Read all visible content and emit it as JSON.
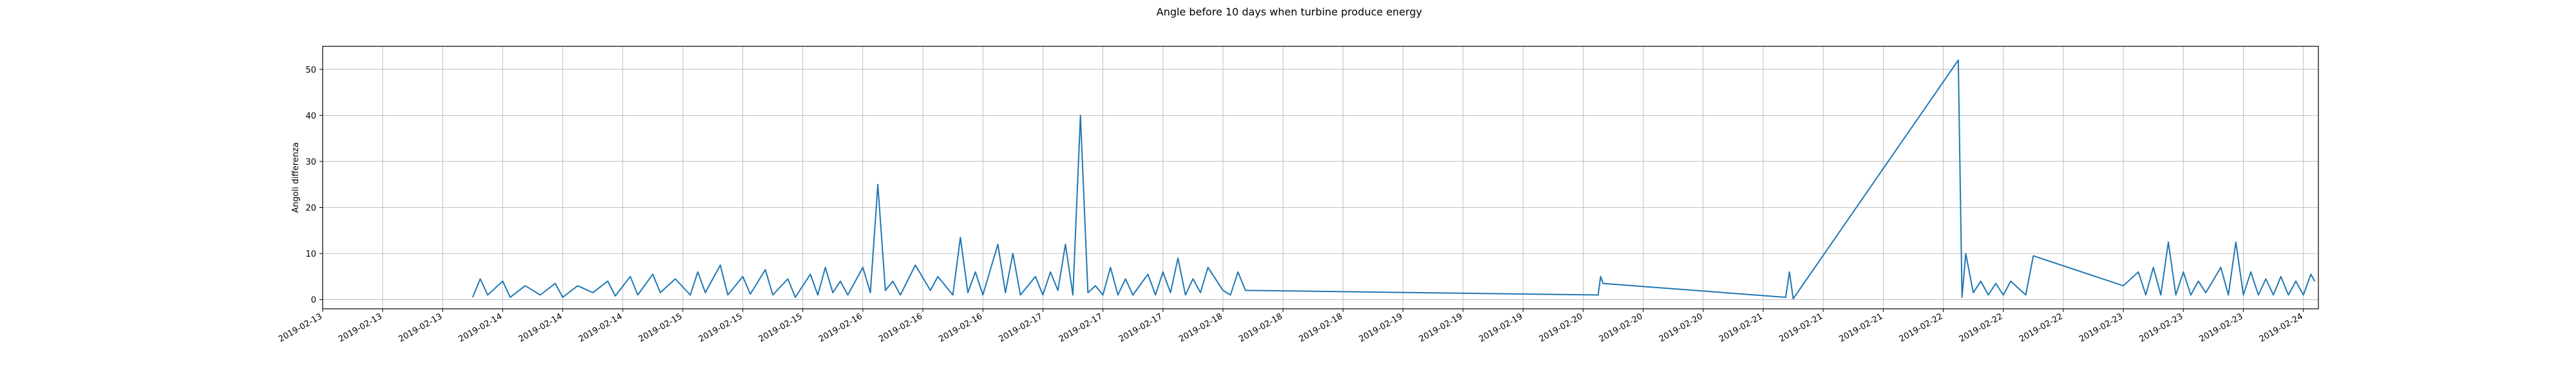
{
  "chart_data": {
    "type": "line",
    "title": "Angle before 10 days when turbine produce energy",
    "xlabel": "",
    "ylabel": "Angoli differenza",
    "ylim": [
      -2,
      55
    ],
    "xlim": [
      "2019-02-13T00:00",
      "2019-02-24T02:00"
    ],
    "yticks": [
      0,
      10,
      20,
      30,
      40,
      50
    ],
    "xticks": [
      {
        "t": "2019-02-13T00:00",
        "label": "2019-02-13"
      },
      {
        "t": "2019-02-13T08:00",
        "label": "2019-02-13"
      },
      {
        "t": "2019-02-13T16:00",
        "label": "2019-02-13"
      },
      {
        "t": "2019-02-14T00:00",
        "label": "2019-02-14"
      },
      {
        "t": "2019-02-14T08:00",
        "label": "2019-02-14"
      },
      {
        "t": "2019-02-14T16:00",
        "label": "2019-02-14"
      },
      {
        "t": "2019-02-15T00:00",
        "label": "2019-02-15"
      },
      {
        "t": "2019-02-15T08:00",
        "label": "2019-02-15"
      },
      {
        "t": "2019-02-15T16:00",
        "label": "2019-02-15"
      },
      {
        "t": "2019-02-16T00:00",
        "label": "2019-02-16"
      },
      {
        "t": "2019-02-16T08:00",
        "label": "2019-02-16"
      },
      {
        "t": "2019-02-16T16:00",
        "label": "2019-02-16"
      },
      {
        "t": "2019-02-17T00:00",
        "label": "2019-02-17"
      },
      {
        "t": "2019-02-17T08:00",
        "label": "2019-02-17"
      },
      {
        "t": "2019-02-17T16:00",
        "label": "2019-02-17"
      },
      {
        "t": "2019-02-18T00:00",
        "label": "2019-02-18"
      },
      {
        "t": "2019-02-18T08:00",
        "label": "2019-02-18"
      },
      {
        "t": "2019-02-18T16:00",
        "label": "2019-02-18"
      },
      {
        "t": "2019-02-19T00:00",
        "label": "2019-02-19"
      },
      {
        "t": "2019-02-19T08:00",
        "label": "2019-02-19"
      },
      {
        "t": "2019-02-19T16:00",
        "label": "2019-02-19"
      },
      {
        "t": "2019-02-20T00:00",
        "label": "2019-02-20"
      },
      {
        "t": "2019-02-20T08:00",
        "label": "2019-02-20"
      },
      {
        "t": "2019-02-20T16:00",
        "label": "2019-02-20"
      },
      {
        "t": "2019-02-21T00:00",
        "label": "2019-02-21"
      },
      {
        "t": "2019-02-21T08:00",
        "label": "2019-02-21"
      },
      {
        "t": "2019-02-21T16:00",
        "label": "2019-02-21"
      },
      {
        "t": "2019-02-22T00:00",
        "label": "2019-02-22"
      },
      {
        "t": "2019-02-22T08:00",
        "label": "2019-02-22"
      },
      {
        "t": "2019-02-22T16:00",
        "label": "2019-02-22"
      },
      {
        "t": "2019-02-23T00:00",
        "label": "2019-02-23"
      },
      {
        "t": "2019-02-23T08:00",
        "label": "2019-02-23"
      },
      {
        "t": "2019-02-23T16:00",
        "label": "2019-02-23"
      },
      {
        "t": "2019-02-24T00:00",
        "label": "2019-02-24"
      }
    ],
    "grid": true,
    "line_color": "#1f77b4",
    "series": [
      {
        "points": [
          [
            "2019-02-13T20:00",
            0.5
          ],
          [
            "2019-02-13T21:00",
            4.5
          ],
          [
            "2019-02-13T22:00",
            1.0
          ],
          [
            "2019-02-14T00:00",
            4.0
          ],
          [
            "2019-02-14T01:00",
            0.5
          ],
          [
            "2019-02-14T03:00",
            3.0
          ],
          [
            "2019-02-14T05:00",
            1.0
          ],
          [
            "2019-02-14T07:00",
            3.5
          ],
          [
            "2019-02-14T08:00",
            0.5
          ],
          [
            "2019-02-14T10:00",
            3.0
          ],
          [
            "2019-02-14T12:00",
            1.5
          ],
          [
            "2019-02-14T14:00",
            4.0
          ],
          [
            "2019-02-14T15:00",
            0.8
          ],
          [
            "2019-02-14T17:00",
            5.0
          ],
          [
            "2019-02-14T18:00",
            1.0
          ],
          [
            "2019-02-14T20:00",
            5.5
          ],
          [
            "2019-02-14T21:00",
            1.5
          ],
          [
            "2019-02-14T23:00",
            4.5
          ],
          [
            "2019-02-15T01:00",
            1.0
          ],
          [
            "2019-02-15T02:00",
            6.0
          ],
          [
            "2019-02-15T03:00",
            1.5
          ],
          [
            "2019-02-15T05:00",
            7.5
          ],
          [
            "2019-02-15T06:00",
            1.0
          ],
          [
            "2019-02-15T08:00",
            5.0
          ],
          [
            "2019-02-15T09:00",
            1.2
          ],
          [
            "2019-02-15T11:00",
            6.5
          ],
          [
            "2019-02-15T12:00",
            1.0
          ],
          [
            "2019-02-15T14:00",
            4.5
          ],
          [
            "2019-02-15T15:00",
            0.5
          ],
          [
            "2019-02-15T17:00",
            5.5
          ],
          [
            "2019-02-15T18:00",
            1.0
          ],
          [
            "2019-02-15T19:00",
            7.0
          ],
          [
            "2019-02-15T20:00",
            1.5
          ],
          [
            "2019-02-15T21:00",
            4.0
          ],
          [
            "2019-02-15T22:00",
            1.0
          ],
          [
            "2019-02-16T00:00",
            7.0
          ],
          [
            "2019-02-16T01:00",
            1.5
          ],
          [
            "2019-02-16T02:00",
            25.0
          ],
          [
            "2019-02-16T03:00",
            2.0
          ],
          [
            "2019-02-16T04:00",
            4.0
          ],
          [
            "2019-02-16T05:00",
            1.0
          ],
          [
            "2019-02-16T07:00",
            7.5
          ],
          [
            "2019-02-16T09:00",
            2.0
          ],
          [
            "2019-02-16T10:00",
            5.0
          ],
          [
            "2019-02-16T12:00",
            1.0
          ],
          [
            "2019-02-16T13:00",
            13.5
          ],
          [
            "2019-02-16T14:00",
            1.5
          ],
          [
            "2019-02-16T15:00",
            6.0
          ],
          [
            "2019-02-16T16:00",
            1.0
          ],
          [
            "2019-02-16T18:00",
            12.0
          ],
          [
            "2019-02-16T19:00",
            1.5
          ],
          [
            "2019-02-16T20:00",
            10.0
          ],
          [
            "2019-02-16T21:00",
            1.0
          ],
          [
            "2019-02-16T23:00",
            5.0
          ],
          [
            "2019-02-17T00:00",
            1.0
          ],
          [
            "2019-02-17T01:00",
            6.0
          ],
          [
            "2019-02-17T02:00",
            2.0
          ],
          [
            "2019-02-17T03:00",
            12.0
          ],
          [
            "2019-02-17T04:00",
            1.0
          ],
          [
            "2019-02-17T05:00",
            40.0
          ],
          [
            "2019-02-17T06:00",
            1.5
          ],
          [
            "2019-02-17T07:00",
            3.0
          ],
          [
            "2019-02-17T08:00",
            1.0
          ],
          [
            "2019-02-17T09:00",
            7.0
          ],
          [
            "2019-02-17T10:00",
            1.0
          ],
          [
            "2019-02-17T11:00",
            4.5
          ],
          [
            "2019-02-17T12:00",
            1.0
          ],
          [
            "2019-02-17T14:00",
            5.5
          ],
          [
            "2019-02-17T15:00",
            1.0
          ],
          [
            "2019-02-17T16:00",
            6.0
          ],
          [
            "2019-02-17T17:00",
            1.5
          ],
          [
            "2019-02-17T18:00",
            9.0
          ],
          [
            "2019-02-17T19:00",
            1.0
          ],
          [
            "2019-02-17T20:00",
            4.5
          ],
          [
            "2019-02-17T21:00",
            1.5
          ],
          [
            "2019-02-17T22:00",
            7.0
          ],
          [
            "2019-02-18T00:00",
            2.0
          ],
          [
            "2019-02-18T01:00",
            1.0
          ],
          [
            "2019-02-18T02:00",
            6.0
          ],
          [
            "2019-02-18T03:00",
            2.0
          ],
          [
            "2019-02-20T02:00",
            1.0
          ],
          [
            "2019-02-20T02:20",
            5.0
          ],
          [
            "2019-02-20T02:40",
            3.5
          ],
          [
            "2019-02-21T03:00",
            0.5
          ],
          [
            "2019-02-21T03:30",
            6.0
          ],
          [
            "2019-02-21T04:00",
            0.2
          ],
          [
            "2019-02-22T02:00",
            52.0
          ],
          [
            "2019-02-22T02:30",
            0.5
          ],
          [
            "2019-02-22T03:00",
            10.0
          ],
          [
            "2019-02-22T04:00",
            1.5
          ],
          [
            "2019-02-22T05:00",
            4.0
          ],
          [
            "2019-02-22T06:00",
            1.0
          ],
          [
            "2019-02-22T07:00",
            3.5
          ],
          [
            "2019-02-22T08:00",
            1.0
          ],
          [
            "2019-02-22T09:00",
            4.0
          ],
          [
            "2019-02-22T11:00",
            1.0
          ],
          [
            "2019-02-22T12:00",
            9.5
          ],
          [
            "2019-02-23T00:00",
            3.0
          ],
          [
            "2019-02-23T02:00",
            6.0
          ],
          [
            "2019-02-23T03:00",
            1.0
          ],
          [
            "2019-02-23T04:00",
            7.0
          ],
          [
            "2019-02-23T05:00",
            1.0
          ],
          [
            "2019-02-23T06:00",
            12.5
          ],
          [
            "2019-02-23T07:00",
            1.0
          ],
          [
            "2019-02-23T08:00",
            6.0
          ],
          [
            "2019-02-23T09:00",
            1.0
          ],
          [
            "2019-02-23T10:00",
            4.0
          ],
          [
            "2019-02-23T11:00",
            1.5
          ],
          [
            "2019-02-23T13:00",
            7.0
          ],
          [
            "2019-02-23T14:00",
            1.0
          ],
          [
            "2019-02-23T15:00",
            12.5
          ],
          [
            "2019-02-23T16:00",
            1.0
          ],
          [
            "2019-02-23T17:00",
            6.0
          ],
          [
            "2019-02-23T18:00",
            1.0
          ],
          [
            "2019-02-23T19:00",
            4.5
          ],
          [
            "2019-02-23T20:00",
            1.0
          ],
          [
            "2019-02-23T21:00",
            5.0
          ],
          [
            "2019-02-23T22:00",
            1.0
          ],
          [
            "2019-02-23T23:00",
            4.0
          ],
          [
            "2019-02-24T00:00",
            1.0
          ],
          [
            "2019-02-24T01:00",
            5.5
          ],
          [
            "2019-02-24T01:30",
            4.0
          ]
        ]
      }
    ]
  }
}
